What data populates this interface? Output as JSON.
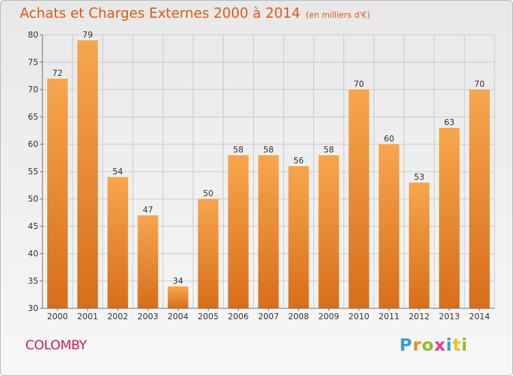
{
  "title": "Achats et Charges Externes 2000 à 2014",
  "subtitle": "(en milliers d'€)",
  "town": "COLOMBY",
  "logo": {
    "letters": [
      "P",
      "r",
      "o",
      "x",
      "i",
      "t",
      "i"
    ],
    "colors": [
      "#3a9bd6",
      "#f08a1c",
      "#8bbf2a",
      "#e83a8a",
      "#3a9bd6",
      "#f0c020",
      "#8bbf2a"
    ]
  },
  "colors": {
    "accent": "#e05a12",
    "bar_top": "#f7a64d",
    "bar_bottom": "#d86e1a",
    "town": "#d11f46"
  },
  "chart_data": {
    "type": "bar",
    "title": "Achats et Charges Externes 2000 à 2014",
    "categories": [
      "2000",
      "2001",
      "2002",
      "2003",
      "2004",
      "2005",
      "2006",
      "2007",
      "2008",
      "2009",
      "2010",
      "2011",
      "2012",
      "2013",
      "2014"
    ],
    "values": [
      72,
      79,
      54,
      47,
      34,
      50,
      58,
      58,
      56,
      58,
      70,
      60,
      53,
      63,
      70
    ],
    "ylim": [
      30,
      80
    ],
    "yticks": [
      30,
      35,
      40,
      45,
      50,
      55,
      60,
      65,
      70,
      75,
      80
    ],
    "grid": true
  }
}
